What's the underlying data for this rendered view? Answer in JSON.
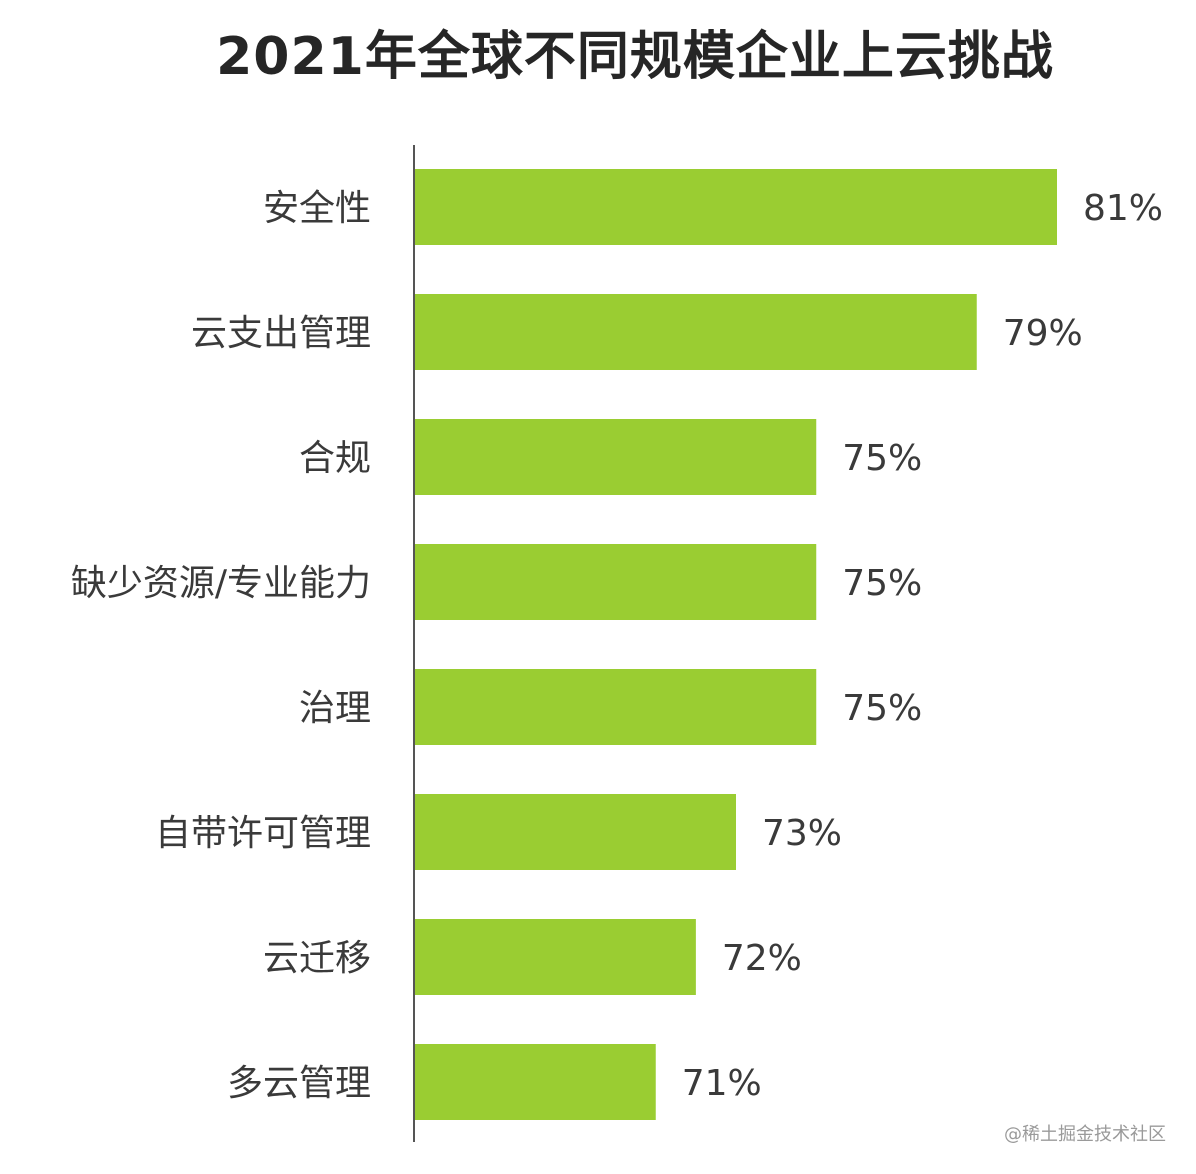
{
  "chart_data": {
    "type": "bar",
    "orientation": "horizontal",
    "title": "2021年全球不同规模企业上云挑战",
    "categories": [
      "安全性",
      "云支出管理",
      "合规",
      "缺少资源/专业能力",
      "治理",
      "自带许可管理",
      "云迁移",
      "多云管理"
    ],
    "values": [
      81,
      79,
      75,
      75,
      75,
      73,
      72,
      71
    ],
    "value_labels": [
      "81%",
      "79%",
      "75%",
      "75%",
      "75%",
      "73%",
      "72%",
      "71%"
    ],
    "unit": "%",
    "bar_color": "#9acd32",
    "xlim": [
      65,
      81
    ],
    "grid": false,
    "legend": "none"
  },
  "watermark": "@稀土掘金技术社区"
}
